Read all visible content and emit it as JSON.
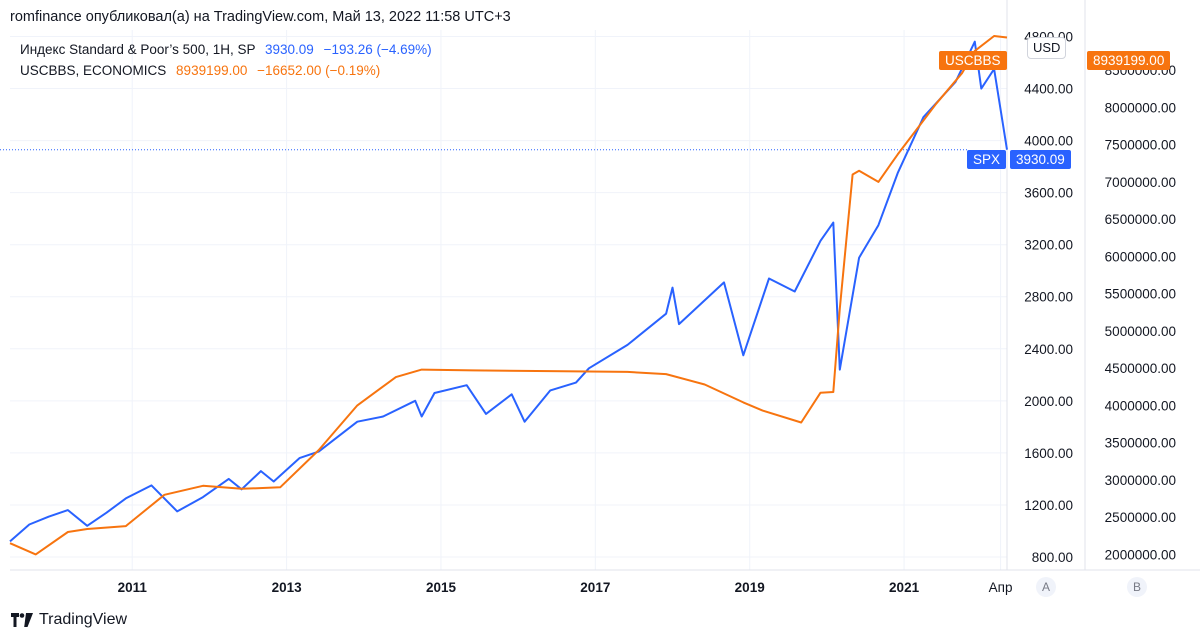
{
  "header": {
    "title": "romfinance опубликовал(а) на TradingView.com, Май 13, 2022 11:58 UTC+3"
  },
  "legend": {
    "spx": {
      "name": "Индекс Standard & Poor’s 500, 1H, SP",
      "value": "3930.09",
      "change": "−193.26 (−4.69%)"
    },
    "uscbbs": {
      "name": "USCBBS, ECONOMICS",
      "value": "8939199.00",
      "change": "−16652.00 (−0.19%)"
    }
  },
  "currency": "USD",
  "tags": {
    "uscbbs_label": "USCBBS",
    "uscbbs_value": "8939199.00",
    "spx_label": "SPX",
    "spx_value": "3930.09"
  },
  "axis_buttons": {
    "a": "A",
    "b": "B"
  },
  "footer": {
    "brand": "TradingView"
  },
  "colors": {
    "spx": "#2962ff",
    "uscbbs": "#f7740f",
    "grid": "#f0f3fa"
  },
  "chart_data": {
    "type": "line",
    "x_ticks": [
      "2011",
      "2013",
      "2015",
      "2017",
      "2019",
      "2021",
      "Апр"
    ],
    "y_left_ticks": [
      "800.00",
      "1200.00",
      "1600.00",
      "2000.00",
      "2400.00",
      "2800.00",
      "3200.00",
      "3600.00",
      "4000.00",
      "4400.00",
      "4800.00"
    ],
    "y_right_ticks": [
      "2000000.00",
      "2500000.00",
      "3000000.00",
      "3500000.00",
      "4000000.00",
      "4500000.00",
      "5000000.00",
      "5500000.00",
      "6000000.00",
      "6500000.00",
      "7000000.00",
      "7500000.00",
      "8000000.00",
      "8500000.00"
    ],
    "y_left_range": [
      700,
      4850
    ],
    "y_right_range": [
      1790000,
      9040000
    ],
    "x_range": [
      "2009-06",
      "2022-05"
    ],
    "series": [
      {
        "name": "SPX",
        "axis": "left",
        "points": [
          [
            "2009-06",
            920
          ],
          [
            "2009-09",
            1050
          ],
          [
            "2009-12",
            1110
          ],
          [
            "2010-03",
            1160
          ],
          [
            "2010-06",
            1040
          ],
          [
            "2010-09",
            1140
          ],
          [
            "2010-12",
            1250
          ],
          [
            "2011-04",
            1350
          ],
          [
            "2011-08",
            1150
          ],
          [
            "2011-12",
            1260
          ],
          [
            "2012-04",
            1400
          ],
          [
            "2012-06",
            1320
          ],
          [
            "2012-09",
            1460
          ],
          [
            "2012-11",
            1380
          ],
          [
            "2013-03",
            1560
          ],
          [
            "2013-06",
            1610
          ],
          [
            "2013-12",
            1840
          ],
          [
            "2014-04",
            1880
          ],
          [
            "2014-09",
            2000
          ],
          [
            "2014-10",
            1880
          ],
          [
            "2014-12",
            2060
          ],
          [
            "2015-05",
            2120
          ],
          [
            "2015-08",
            1900
          ],
          [
            "2015-12",
            2050
          ],
          [
            "2016-02",
            1840
          ],
          [
            "2016-06",
            2080
          ],
          [
            "2016-10",
            2140
          ],
          [
            "2016-12",
            2250
          ],
          [
            "2017-06",
            2430
          ],
          [
            "2017-12",
            2670
          ],
          [
            "2018-01",
            2870
          ],
          [
            "2018-02",
            2590
          ],
          [
            "2018-09",
            2910
          ],
          [
            "2018-12",
            2350
          ],
          [
            "2019-04",
            2940
          ],
          [
            "2019-08",
            2840
          ],
          [
            "2019-12",
            3230
          ],
          [
            "2020-02",
            3370
          ],
          [
            "2020-03",
            2240
          ],
          [
            "2020-06",
            3100
          ],
          [
            "2020-09",
            3350
          ],
          [
            "2020-12",
            3750
          ],
          [
            "2021-04",
            4180
          ],
          [
            "2021-09",
            4450
          ],
          [
            "2021-12",
            4760
          ],
          [
            "2022-01",
            4400
          ],
          [
            "2022-03",
            4550
          ],
          [
            "2022-05",
            3930
          ]
        ]
      },
      {
        "name": "USCBBS",
        "axis": "right",
        "points": [
          [
            "2009-06",
            2150000
          ],
          [
            "2009-10",
            2000000
          ],
          [
            "2010-03",
            2300000
          ],
          [
            "2010-06",
            2340000
          ],
          [
            "2010-12",
            2380000
          ],
          [
            "2011-06",
            2800000
          ],
          [
            "2011-12",
            2920000
          ],
          [
            "2012-06",
            2880000
          ],
          [
            "2012-12",
            2900000
          ],
          [
            "2013-06",
            3400000
          ],
          [
            "2013-12",
            4000000
          ],
          [
            "2014-06",
            4380000
          ],
          [
            "2014-10",
            4480000
          ],
          [
            "2015-06",
            4470000
          ],
          [
            "2016-06",
            4460000
          ],
          [
            "2017-06",
            4450000
          ],
          [
            "2017-12",
            4420000
          ],
          [
            "2018-06",
            4280000
          ],
          [
            "2018-12",
            4040000
          ],
          [
            "2019-03",
            3930000
          ],
          [
            "2019-09",
            3770000
          ],
          [
            "2019-12",
            4170000
          ],
          [
            "2020-02",
            4180000
          ],
          [
            "2020-03",
            5300000
          ],
          [
            "2020-05",
            7100000
          ],
          [
            "2020-06",
            7150000
          ],
          [
            "2020-09",
            7000000
          ],
          [
            "2020-12",
            7370000
          ],
          [
            "2021-06",
            8050000
          ],
          [
            "2021-10",
            8460000
          ],
          [
            "2021-12",
            8760000
          ],
          [
            "2022-03",
            8960000
          ],
          [
            "2022-05",
            8939199
          ]
        ]
      }
    ],
    "last_value_line": 3930.09
  }
}
